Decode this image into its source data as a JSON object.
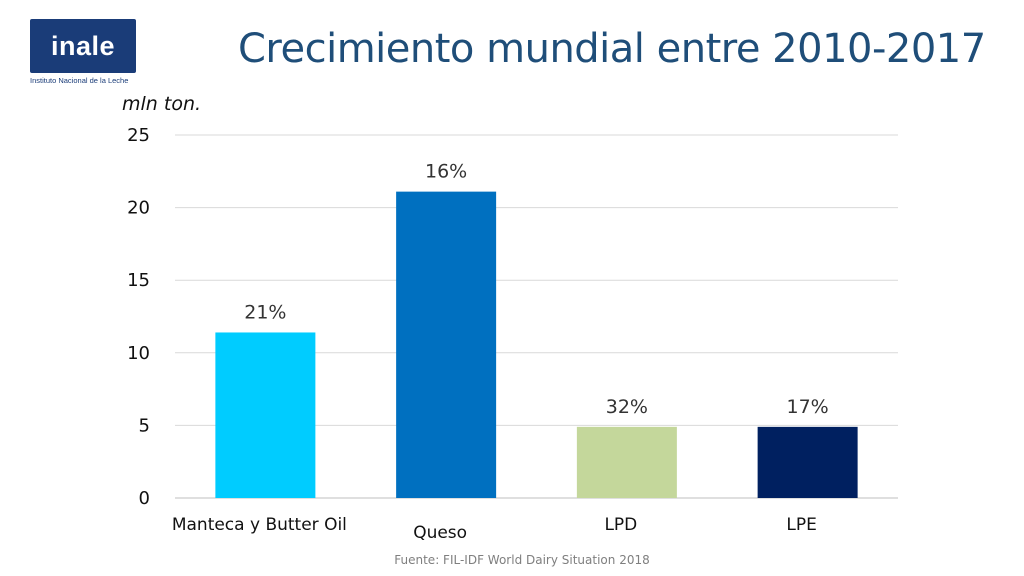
{
  "logo": {
    "name": "inale",
    "subtitle": "Instituto Nacional de la Leche",
    "color": "#1a3c78"
  },
  "page": {
    "title": "Crecimiento mundial entre 2010-2017",
    "source": "Fuente: FIL-IDF World Dairy Situation 2018"
  },
  "chart_data": {
    "type": "bar",
    "title": "Crecimiento mundial entre 2010-2017",
    "ylabel": "mln ton.",
    "xlabel": "",
    "ylim": [
      0,
      25
    ],
    "yticks": [
      0,
      5,
      10,
      15,
      20,
      25
    ],
    "grid": true,
    "categories": [
      "Manteca y Butter Oil",
      "Queso",
      "LPD",
      "LPE"
    ],
    "values": [
      11.4,
      21.1,
      4.9,
      4.9
    ],
    "data_labels": [
      "21%",
      "16%",
      "32%",
      "17%"
    ],
    "colors": [
      "#00ccff",
      "#0070c0",
      "#c4d79b",
      "#002060"
    ]
  }
}
